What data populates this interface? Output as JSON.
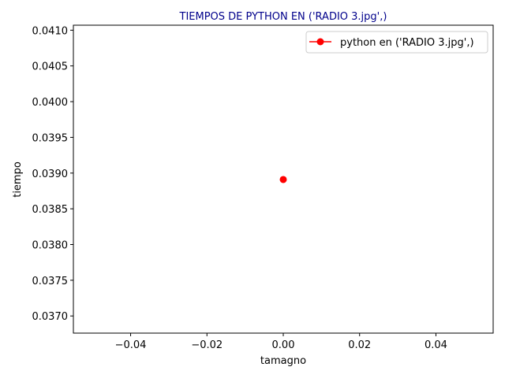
{
  "chart_data": {
    "type": "line",
    "title": "TIEMPOS DE PYTHON EN ('RADIO 3.jpg',)",
    "title_color": "#00008b",
    "xlabel": "tamagno",
    "ylabel": "tiempo",
    "xlim": [
      -0.055,
      0.055
    ],
    "ylim": [
      0.03676,
      0.04107
    ],
    "x_ticks": [
      -0.04,
      -0.02,
      0.0,
      0.02,
      0.04
    ],
    "x_tick_labels": [
      "−0.04",
      "−0.02",
      "0.00",
      "0.02",
      "0.04"
    ],
    "y_ticks": [
      0.037,
      0.0375,
      0.038,
      0.0385,
      0.039,
      0.0395,
      0.04,
      0.0405,
      0.041
    ],
    "y_tick_labels": [
      "0.0370",
      "0.0375",
      "0.0380",
      "0.0385",
      "0.0390",
      "0.0395",
      "0.0400",
      "0.0405",
      "0.0410"
    ],
    "grid": false,
    "legend_position": "top-right",
    "series": [
      {
        "name": "python en ('RADIO 3.jpg',)",
        "color": "#ff0000",
        "marker": "circle",
        "x": [
          0.0
        ],
        "y": [
          0.03891
        ]
      }
    ]
  }
}
